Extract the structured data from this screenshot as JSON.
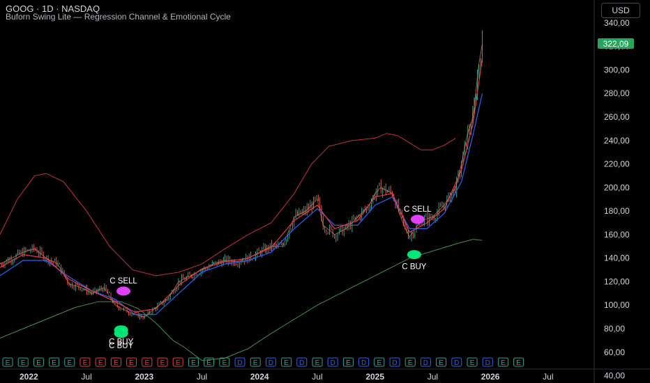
{
  "header": {
    "title": "GOOG · 1D · NASDAQ",
    "subtitle": "Buforn Swing Lite — Regression Channel & Emotional Cycle"
  },
  "toolbar": {
    "currency": "USD"
  },
  "price": {
    "last": "322,09",
    "color": "#26a65b"
  },
  "chart_data": {
    "type": "line",
    "title": "",
    "xlabel": "",
    "ylabel": "",
    "ylim": [
      35,
      350
    ],
    "y_ticks": [
      "340,00",
      "320,00",
      "300,00",
      "280,00",
      "260,00",
      "240,00",
      "220,00",
      "200,00",
      "180,00",
      "160,00",
      "140,00",
      "120,00",
      "100,00",
      "80,00",
      "60,00",
      "40,00"
    ],
    "y_tick_values": [
      340,
      320,
      300,
      280,
      260,
      240,
      220,
      200,
      180,
      160,
      140,
      120,
      100,
      80,
      60,
      40
    ],
    "x_ticks": [
      "2022",
      "Jul",
      "2023",
      "Jul",
      "2024",
      "Jul",
      "2025",
      "Jul",
      "2026",
      "Jul"
    ],
    "x_tick_values": [
      2022.0,
      2022.5,
      2023.0,
      2023.5,
      2024.0,
      2024.5,
      2025.0,
      2025.5,
      2026.0,
      2026.5
    ],
    "xlim": [
      2021.75,
      2026.9
    ],
    "grid": false,
    "colors": {
      "price_up": "#26a69a",
      "price_down": "#ef5350",
      "fast_ma": "#f23645",
      "slow_ma": "#2962ff",
      "channel_upper": "#f23645",
      "channel_lower": "#4caf50",
      "sell": "#e040fb",
      "buy": "#00e676"
    },
    "series": [
      {
        "role": "price",
        "x": [
          2021.75,
          2021.85,
          2021.95,
          2022.05,
          2022.15,
          2022.25,
          2022.35,
          2022.45,
          2022.55,
          2022.65,
          2022.75,
          2022.85,
          2022.92,
          2023.0,
          2023.1,
          2023.2,
          2023.3,
          2023.4,
          2023.5,
          2023.6,
          2023.7,
          2023.8,
          2023.9,
          2024.0,
          2024.1,
          2024.2,
          2024.3,
          2024.4,
          2024.5,
          2024.55,
          2024.65,
          2024.75,
          2024.85,
          2024.95,
          2025.0,
          2025.05,
          2025.15,
          2025.25,
          2025.3,
          2025.4,
          2025.5,
          2025.6,
          2025.7,
          2025.75,
          2025.8,
          2025.85,
          2025.9,
          2025.93
        ],
        "y": [
          135,
          140,
          145,
          148,
          140,
          135,
          118,
          115,
          110,
          115,
          100,
          95,
          92,
          90,
          98,
          105,
          120,
          125,
          130,
          135,
          138,
          137,
          140,
          145,
          150,
          150,
          175,
          180,
          190,
          168,
          160,
          165,
          175,
          185,
          195,
          200,
          195,
          168,
          158,
          172,
          175,
          185,
          200,
          220,
          245,
          260,
          305,
          322
        ]
      },
      {
        "role": "fast_ma",
        "x": [
          2021.75,
          2021.95,
          2022.15,
          2022.35,
          2022.55,
          2022.75,
          2022.92,
          2023.1,
          2023.3,
          2023.5,
          2023.7,
          2023.9,
          2024.1,
          2024.3,
          2024.5,
          2024.65,
          2024.85,
          2025.0,
          2025.15,
          2025.3,
          2025.45,
          2025.6,
          2025.75,
          2025.85,
          2025.93
        ],
        "y": [
          132,
          143,
          140,
          122,
          112,
          103,
          94,
          97,
          117,
          131,
          137,
          140,
          149,
          172,
          185,
          165,
          172,
          192,
          195,
          162,
          170,
          182,
          215,
          255,
          310
        ]
      },
      {
        "role": "slow_ma",
        "x": [
          2021.75,
          2021.95,
          2022.15,
          2022.35,
          2022.55,
          2022.75,
          2022.92,
          2023.1,
          2023.3,
          2023.5,
          2023.7,
          2023.9,
          2024.1,
          2024.3,
          2024.5,
          2024.65,
          2024.85,
          2025.0,
          2025.15,
          2025.3,
          2025.45,
          2025.6,
          2025.75,
          2025.85,
          2025.93
        ],
        "y": [
          125,
          138,
          138,
          124,
          112,
          105,
          92,
          92,
          110,
          128,
          135,
          138,
          145,
          165,
          182,
          168,
          168,
          185,
          192,
          165,
          165,
          178,
          205,
          245,
          280
        ]
      },
      {
        "role": "channel_upper",
        "x": [
          2021.75,
          2021.9,
          2022.05,
          2022.15,
          2022.3,
          2022.5,
          2022.7,
          2022.9,
          2023.1,
          2023.3,
          2023.5,
          2023.7,
          2023.9,
          2024.1,
          2024.3,
          2024.45,
          2024.6,
          2024.8,
          2025.0,
          2025.1,
          2025.2,
          2025.3,
          2025.4,
          2025.5,
          2025.6,
          2025.7
        ],
        "y": [
          160,
          190,
          210,
          212,
          205,
          180,
          150,
          130,
          125,
          128,
          135,
          148,
          160,
          170,
          195,
          220,
          235,
          240,
          242,
          246,
          244,
          238,
          232,
          232,
          236,
          242
        ]
      },
      {
        "role": "channel_lower",
        "x": [
          2021.75,
          2022.0,
          2022.2,
          2022.4,
          2022.6,
          2022.8,
          2022.95,
          2023.1,
          2023.25,
          2023.35,
          2023.5,
          2023.7,
          2023.9,
          2024.1,
          2024.3,
          2024.5,
          2024.7,
          2024.9,
          2025.1,
          2025.3,
          2025.5,
          2025.7,
          2025.85,
          2025.93
        ],
        "y": [
          72,
          82,
          90,
          98,
          103,
          103,
          97,
          85,
          70,
          64,
          53,
          55,
          63,
          76,
          88,
          100,
          110,
          120,
          130,
          140,
          146,
          152,
          156,
          155
        ]
      }
    ],
    "annotations": [
      {
        "text": "C SELL",
        "type": "sell",
        "x": 2022.82,
        "y": 112
      },
      {
        "text": "C BUY",
        "type": "buy",
        "x": 2022.8,
        "y": 79
      },
      {
        "text": "C BUY",
        "type": "buy",
        "x": 2022.8,
        "y": 76
      },
      {
        "text": "C SELL",
        "type": "sell",
        "x": 2025.37,
        "y": 173
      },
      {
        "text": "C BUY",
        "type": "buy",
        "x": 2025.34,
        "y": 143
      }
    ],
    "event_markers": [
      "E",
      "E",
      "E",
      "E",
      "E",
      "E",
      "E",
      "E",
      "E",
      "E",
      "E",
      "E",
      "E",
      "E",
      "E",
      "D",
      "E",
      "D",
      "E",
      "D",
      "E",
      "D",
      "E",
      "D",
      "E",
      "D",
      "E",
      "D",
      "E",
      "D",
      "E",
      "D",
      "E",
      "E"
    ]
  }
}
